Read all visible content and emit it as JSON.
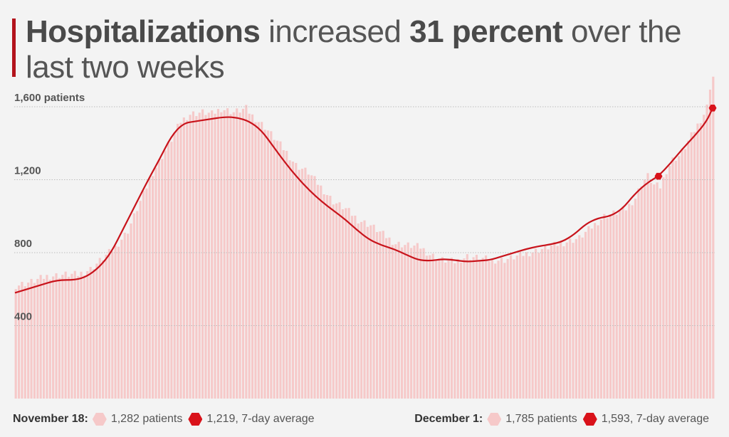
{
  "title": {
    "part1": "Hospitalizations",
    "part2": " increased ",
    "part3": "31 percent",
    "part4": " over the last two weeks"
  },
  "colors": {
    "bar": "#f6c9c9",
    "line": "#c8131b",
    "marker": "#d9121a",
    "grid": "#bdbdbd",
    "background": "#f3f3f3"
  },
  "chart_data": {
    "type": "bar",
    "title": "Hospitalizations increased 31 percent over the last two weeks",
    "ylim": [
      0,
      1750
    ],
    "yticks": [
      {
        "value": 400,
        "label": "400"
      },
      {
        "value": 800,
        "label": "800"
      },
      {
        "value": 1200,
        "label": "1,200"
      },
      {
        "value": 1600,
        "label": "1,600 patients"
      }
    ],
    "grid": true,
    "n_days": 207,
    "series": [
      {
        "name": "patients",
        "type": "bar",
        "knots": [
          [
            0,
            620
          ],
          [
            5,
            640
          ],
          [
            10,
            670
          ],
          [
            16,
            680
          ],
          [
            20,
            680
          ],
          [
            24,
            710
          ],
          [
            28,
            770
          ],
          [
            32,
            830
          ],
          [
            36,
            920
          ],
          [
            40,
            1080
          ],
          [
            44,
            1240
          ],
          [
            48,
            1360
          ],
          [
            50,
            1420
          ],
          [
            53,
            1520
          ],
          [
            56,
            1560
          ],
          [
            60,
            1570
          ],
          [
            63,
            1560
          ],
          [
            66,
            1590
          ],
          [
            70,
            1570
          ],
          [
            74,
            1590
          ],
          [
            76,
            1550
          ],
          [
            80,
            1490
          ],
          [
            83,
            1430
          ],
          [
            87,
            1350
          ],
          [
            90,
            1280
          ],
          [
            94,
            1240
          ],
          [
            98,
            1160
          ],
          [
            102,
            1080
          ],
          [
            106,
            1040
          ],
          [
            110,
            980
          ],
          [
            114,
            950
          ],
          [
            118,
            900
          ],
          [
            122,
            850
          ],
          [
            126,
            840
          ],
          [
            130,
            830
          ],
          [
            133,
            790
          ],
          [
            137,
            760
          ],
          [
            141,
            750
          ],
          [
            145,
            780
          ],
          [
            149,
            770
          ],
          [
            153,
            760
          ],
          [
            157,
            760
          ],
          [
            161,
            780
          ],
          [
            165,
            800
          ],
          [
            169,
            820
          ],
          [
            173,
            840
          ],
          [
            177,
            860
          ],
          [
            181,
            880
          ],
          [
            185,
            940
          ],
          [
            189,
            1000
          ],
          [
            193,
            1020
          ],
          [
            196,
            1040
          ],
          [
            199,
            1100
          ],
          [
            201,
            1180
          ],
          [
            203,
            1220
          ],
          [
            205,
            1170
          ],
          [
            207,
            1160
          ],
          [
            209,
            1250
          ],
          [
            211,
            1310
          ],
          [
            213,
            1330
          ],
          [
            215,
            1380
          ],
          [
            217,
            1440
          ],
          [
            219,
            1500
          ],
          [
            221,
            1560
          ],
          [
            222,
            1600
          ],
          [
            223,
            1710
          ],
          [
            224,
            1765
          ]
        ]
      },
      {
        "name": "7-day average",
        "type": "line",
        "points": [
          [
            0,
            580
          ],
          [
            8,
            620
          ],
          [
            14,
            650
          ],
          [
            20,
            650
          ],
          [
            24,
            670
          ],
          [
            28,
            720
          ],
          [
            32,
            800
          ],
          [
            36,
            930
          ],
          [
            40,
            1060
          ],
          [
            44,
            1190
          ],
          [
            48,
            1310
          ],
          [
            52,
            1440
          ],
          [
            56,
            1510
          ],
          [
            60,
            1520
          ],
          [
            64,
            1530
          ],
          [
            70,
            1545
          ],
          [
            74,
            1540
          ],
          [
            78,
            1520
          ],
          [
            82,
            1470
          ],
          [
            86,
            1380
          ],
          [
            90,
            1290
          ],
          [
            94,
            1210
          ],
          [
            98,
            1140
          ],
          [
            102,
            1080
          ],
          [
            106,
            1030
          ],
          [
            110,
            980
          ],
          [
            114,
            920
          ],
          [
            118,
            870
          ],
          [
            122,
            840
          ],
          [
            126,
            820
          ],
          [
            130,
            790
          ],
          [
            134,
            760
          ],
          [
            138,
            755
          ],
          [
            142,
            765
          ],
          [
            146,
            760
          ],
          [
            150,
            750
          ],
          [
            154,
            755
          ],
          [
            158,
            760
          ],
          [
            162,
            780
          ],
          [
            166,
            800
          ],
          [
            170,
            820
          ],
          [
            174,
            835
          ],
          [
            178,
            845
          ],
          [
            182,
            860
          ],
          [
            186,
            900
          ],
          [
            190,
            960
          ],
          [
            194,
            990
          ],
          [
            198,
            1000
          ],
          [
            202,
            1040
          ],
          [
            206,
            1120
          ],
          [
            210,
            1180
          ],
          [
            214,
            1220
          ],
          [
            218,
            1290
          ],
          [
            222,
            1370
          ],
          [
            226,
            1440
          ],
          [
            230,
            1520
          ],
          [
            232,
            1593
          ]
        ]
      }
    ],
    "markers": [
      {
        "day": 214,
        "value": 1219,
        "label": "November 18"
      },
      {
        "day": 232,
        "value": 1593,
        "label": "December 1"
      }
    ]
  },
  "footer": {
    "left": {
      "date": "November 18:",
      "patients": "1,282 patients",
      "average": "1,219, 7-day average"
    },
    "right": {
      "date": "December 1:",
      "patients": "1,785 patients",
      "average": "1,593, 7-day average"
    }
  }
}
